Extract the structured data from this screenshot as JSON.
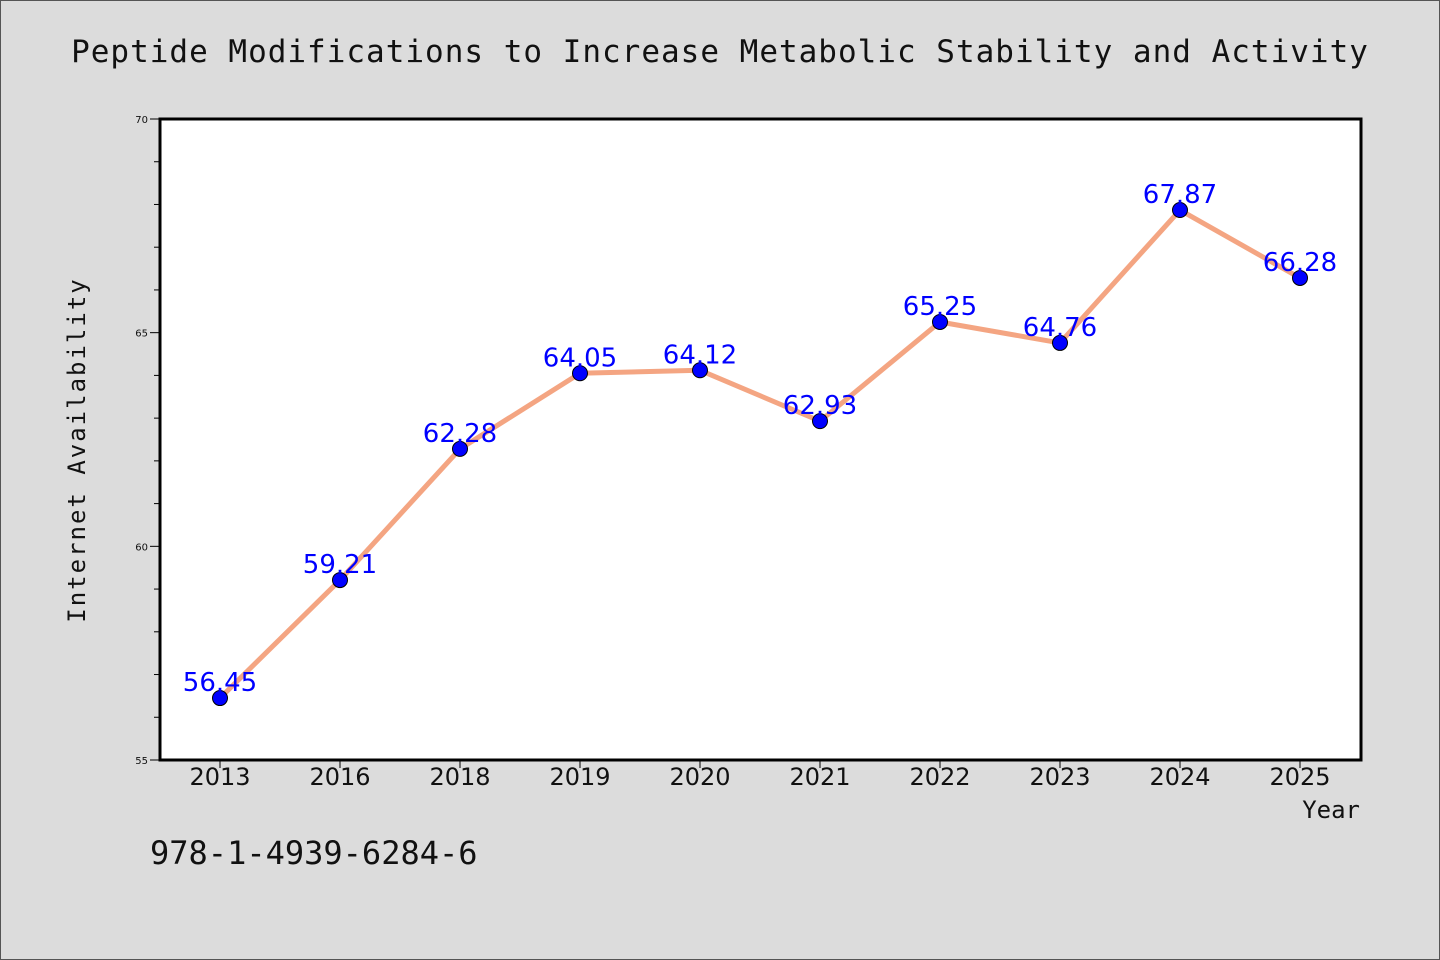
{
  "chart_data": {
    "type": "line",
    "title": "Peptide Modifications to Increase Metabolic Stability and Activity",
    "xlabel": "Year",
    "ylabel": "Internet Availability",
    "categories": [
      "2013",
      "2016",
      "2018",
      "2019",
      "2020",
      "2021",
      "2022",
      "2023",
      "2024",
      "2025"
    ],
    "series": [
      {
        "values": [
          56.45,
          59.21,
          62.28,
          64.05,
          64.12,
          62.93,
          65.25,
          64.76,
          67.87,
          66.28
        ],
        "labels": [
          "56.45",
          "59.21",
          "62.28",
          "64.05",
          "64.12",
          "62.93",
          "65.25",
          "64.76",
          "67.87",
          "66.28"
        ]
      }
    ],
    "ylim": [
      55,
      70
    ],
    "yticks": [
      "55",
      "60",
      "65",
      "70"
    ],
    "grid": false,
    "legend": "none",
    "colors": {
      "line": "#f4a582",
      "marker": "#0000ff",
      "label": "#0000ff"
    }
  },
  "annotation": {
    "isbn": "978-1-4939-6284-6"
  }
}
